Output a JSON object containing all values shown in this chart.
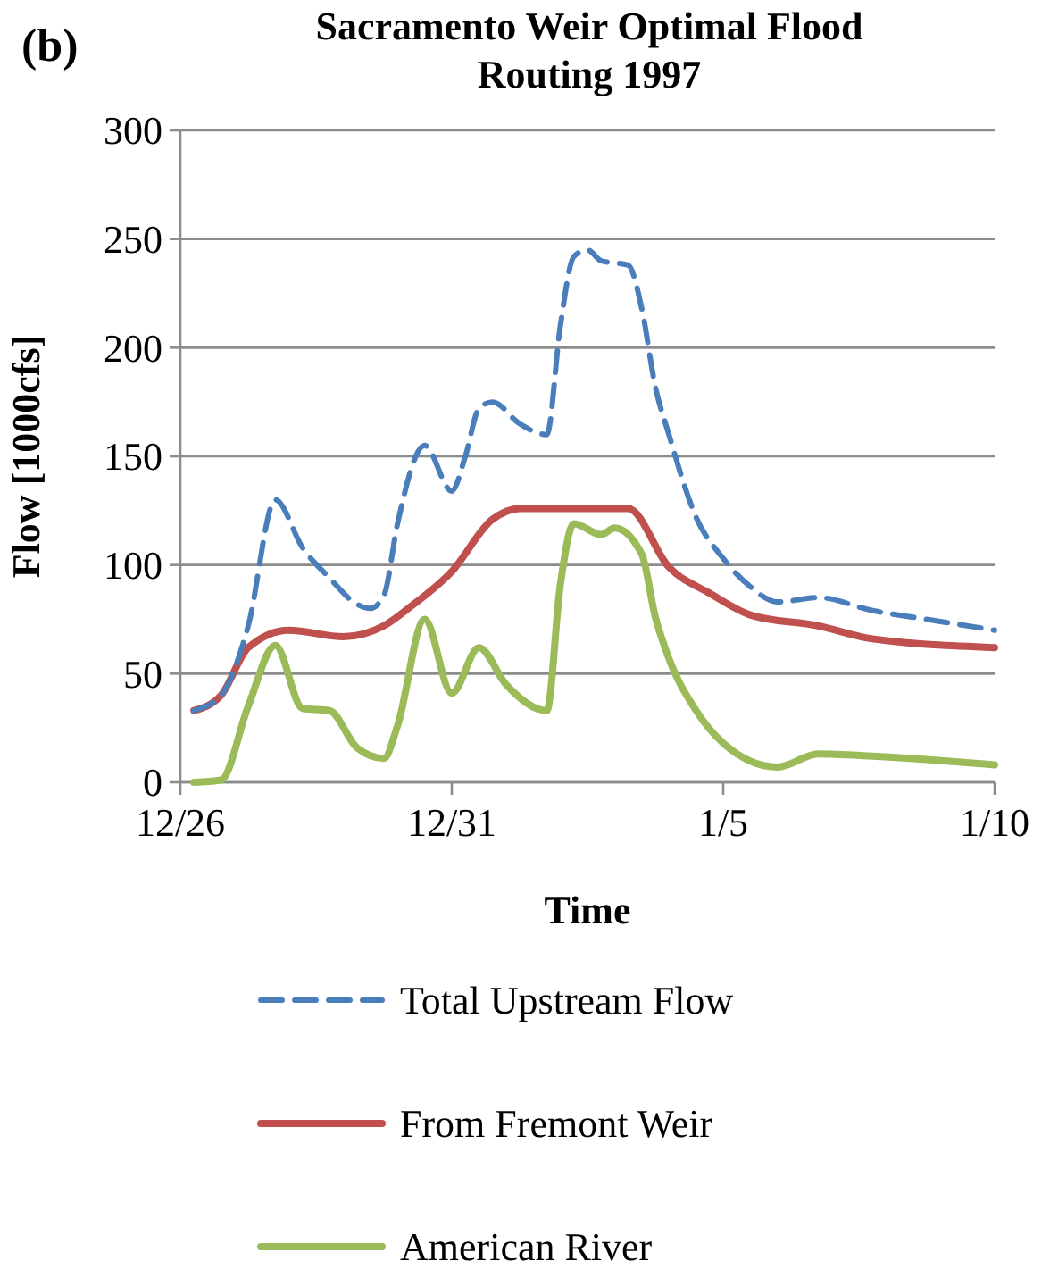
{
  "chart_data": {
    "type": "line",
    "title": "Sacramento Weir Optimal Flood Routing 1997",
    "annotations": [
      "(b)"
    ],
    "xlabel": "Time",
    "ylabel": "Flow [1000cfs]",
    "xlim": [
      "1996-12-26",
      "1997-01-10"
    ],
    "xticks": [
      {
        "value": "1996-12-26",
        "label": "12/26"
      },
      {
        "value": "1996-12-31",
        "label": "12/31"
      },
      {
        "value": "1997-01-05",
        "label": "1/5"
      },
      {
        "value": "1997-01-10",
        "label": "1/10"
      }
    ],
    "ylim": [
      0,
      300
    ],
    "yticks": [
      0,
      50,
      100,
      150,
      200,
      250,
      300
    ],
    "grid": "y",
    "legend": "bottom",
    "series": [
      {
        "name": "Total Upstream Flow",
        "color": "#4a7ebb",
        "line_style": "dashed",
        "x": [
          "1996-12-26T06:00",
          "1996-12-26T18:00",
          "1996-12-27T06:00",
          "1996-12-27T18:00",
          "1996-12-28T06:00",
          "1996-12-28T18:00",
          "1996-12-29T06:00",
          "1996-12-29T12:00",
          "1996-12-29T18:00",
          "1996-12-30T00:00",
          "1996-12-30T12:00",
          "1996-12-31T00:00",
          "1996-12-31T06:00",
          "1996-12-31T12:00",
          "1996-12-31T18:00",
          "1997-01-01T06:00",
          "1997-01-01T18:00",
          "1997-01-02T00:00",
          "1997-01-02T06:00",
          "1997-01-02T12:00",
          "1997-01-02T18:00",
          "1997-01-03T06:00",
          "1997-01-03T12:00",
          "1997-01-03T18:00",
          "1997-01-04T00:00",
          "1997-01-04T12:00",
          "1997-01-05T00:00",
          "1997-01-05T12:00",
          "1997-01-06T00:00",
          "1997-01-06T18:00",
          "1997-01-07T18:00",
          "1997-01-08T18:00",
          "1997-01-10T00:00"
        ],
        "values": [
          33,
          40,
          72,
          130,
          108,
          94,
          82,
          80,
          86,
          119,
          155,
          134,
          150,
          172,
          175,
          165,
          160,
          210,
          242,
          245,
          240,
          238,
          218,
          182,
          160,
          122,
          103,
          90,
          83,
          85,
          79,
          75,
          70
        ]
      },
      {
        "name": "From Fremont Weir",
        "color": "#c0504d",
        "line_style": "solid",
        "x": [
          "1996-12-26T06:00",
          "1996-12-26T18:00",
          "1996-12-27T06:00",
          "1996-12-28T00:00",
          "1996-12-29T00:00",
          "1996-12-29T18:00",
          "1996-12-30T06:00",
          "1996-12-31T00:00",
          "1996-12-31T18:00",
          "1997-01-01T06:00",
          "1997-01-03T06:00",
          "1997-01-04T00:00",
          "1997-01-04T18:00",
          "1997-01-05T12:00",
          "1997-01-06T18:00",
          "1997-01-07T18:00",
          "1997-01-10T00:00"
        ],
        "values": [
          33,
          40,
          62,
          70,
          67,
          72,
          81,
          97,
          121,
          126,
          126,
          99,
          87,
          77,
          72,
          66,
          62
        ]
      },
      {
        "name": "American River",
        "color": "#9bbb59",
        "line_style": "solid",
        "x": [
          "1996-12-26T06:00",
          "1996-12-26T18:00",
          "1996-12-27T06:00",
          "1996-12-27T18:00",
          "1996-12-28T06:00",
          "1996-12-28T18:00",
          "1996-12-29T06:00",
          "1996-12-29T18:00",
          "1996-12-30T00:00",
          "1996-12-30T12:00",
          "1996-12-31T00:00",
          "1996-12-31T12:00",
          "1997-01-01T00:00",
          "1997-01-01T18:00",
          "1997-01-02T00:00",
          "1997-01-02T06:00",
          "1997-01-02T18:00",
          "1997-01-03T00:00",
          "1997-01-03T12:00",
          "1997-01-03T18:00",
          "1997-01-04T00:00",
          "1997-01-04T12:00",
          "1997-01-05T00:00",
          "1997-01-06T00:00",
          "1997-01-06T18:00",
          "1997-01-07T18:00",
          "1997-01-10T00:00"
        ],
        "values": [
          0,
          1,
          35,
          63,
          34,
          33,
          16,
          11,
          26,
          75,
          41,
          62,
          45,
          33,
          91,
          119,
          114,
          117,
          105,
          76,
          57,
          33,
          18,
          7,
          13,
          12,
          8
        ]
      }
    ]
  }
}
